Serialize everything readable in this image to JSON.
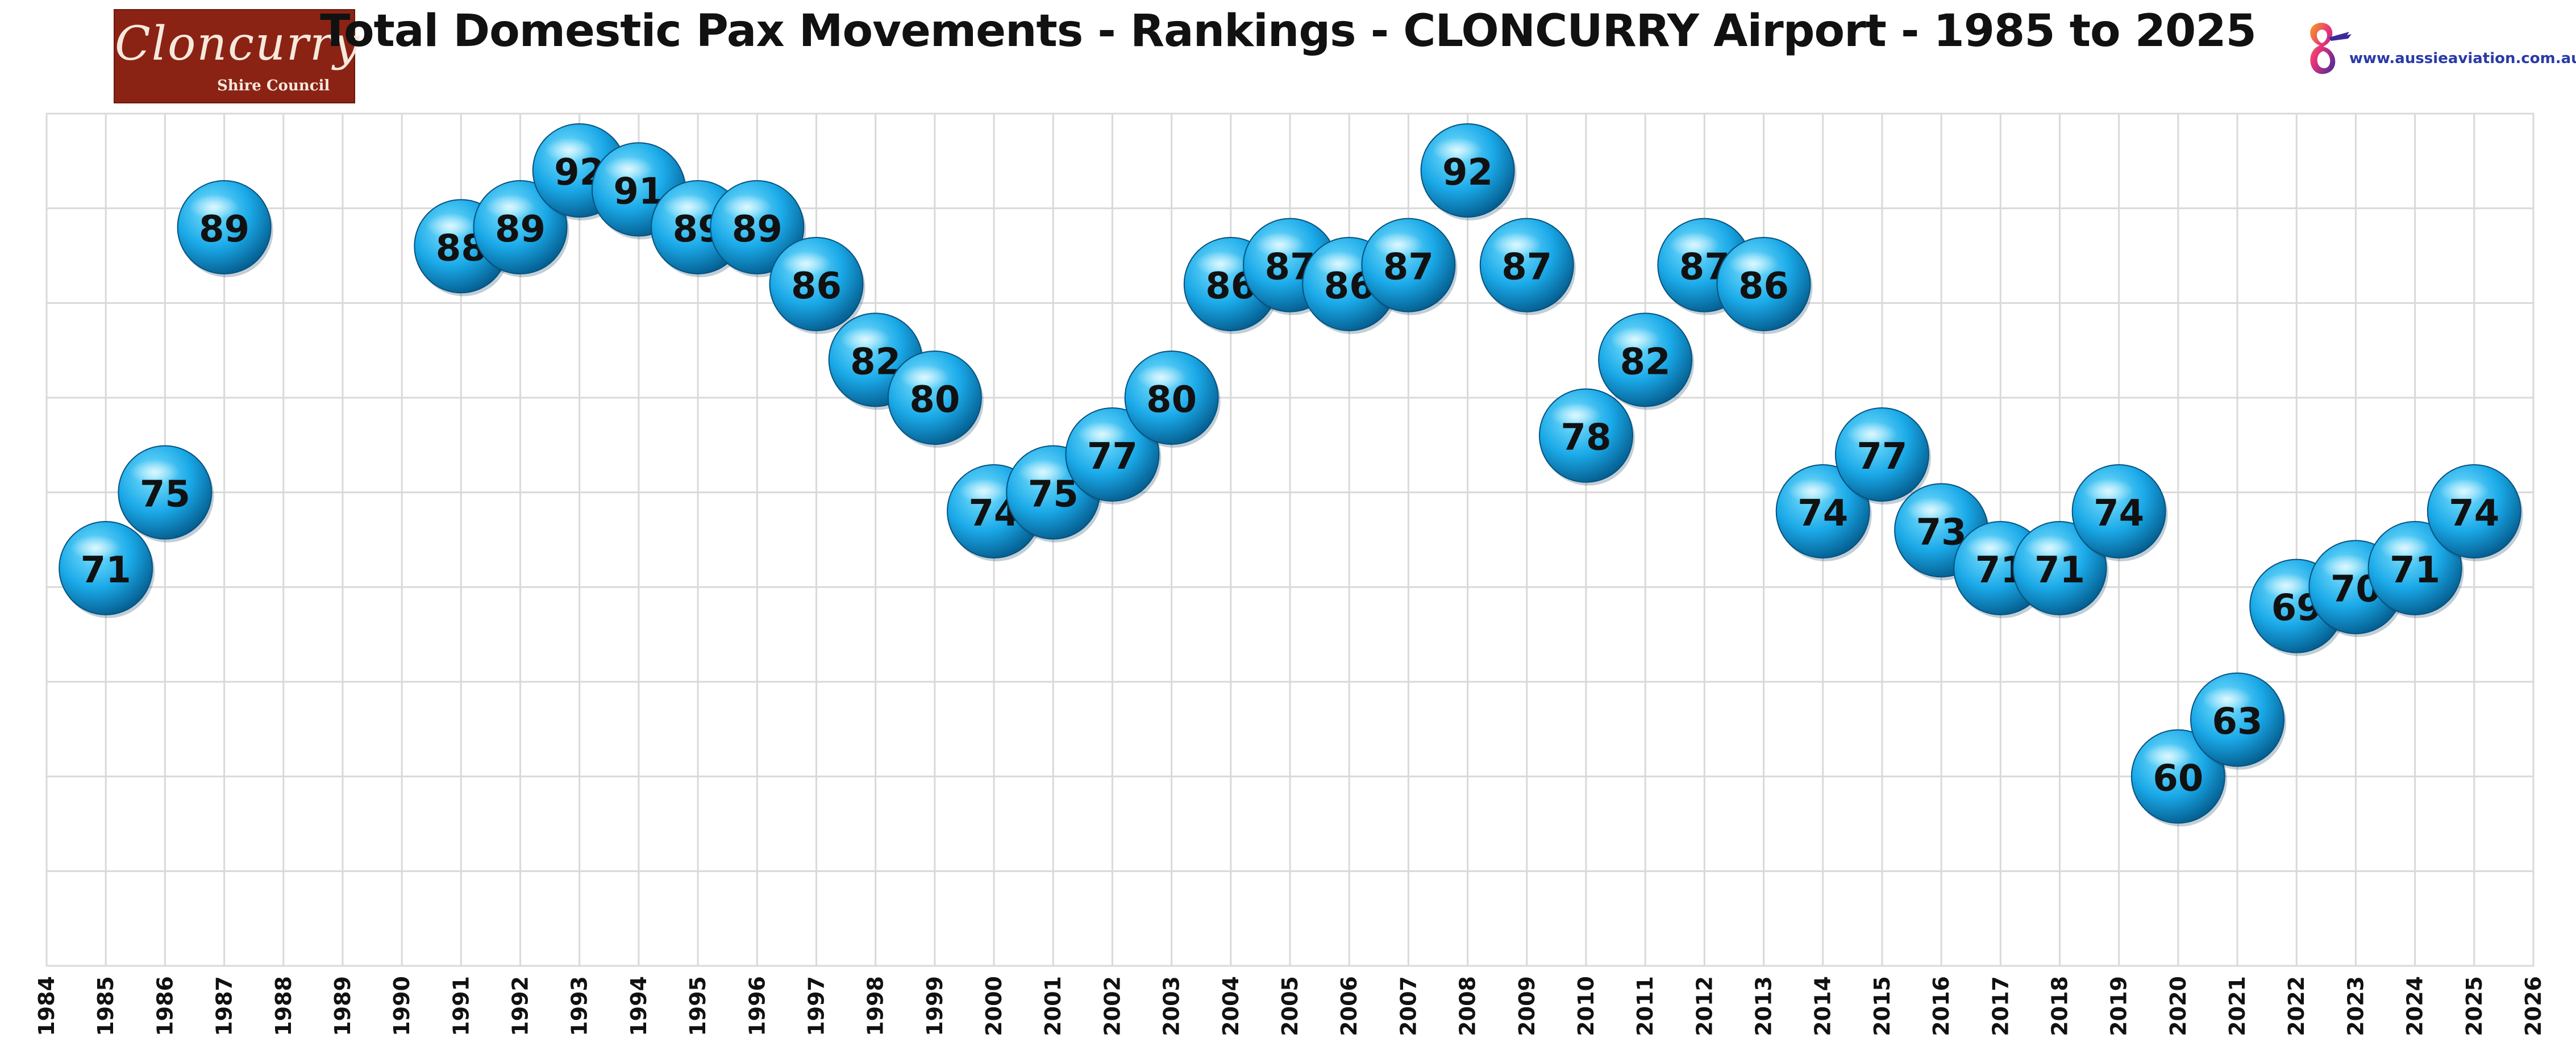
{
  "title": "Total Domestic Pax Movements - Rankings - CLONCURRY Airport - 1985 to 2025",
  "logos": {
    "left_script": "Cloncurry",
    "left_sub": "Shire Council",
    "right_url": "www.aussieaviation.com.au"
  },
  "colors": {
    "bubble_light": "#7fe3ff",
    "bubble_mid": "#1aa9e8",
    "bubble_dark": "#045b8c",
    "grid": "#d9d9d9"
  },
  "chart_data": {
    "type": "scatter",
    "title": "Total Domestic Pax Movements - Rankings - CLONCURRY Airport - 1985 to 2025",
    "xlabel": "",
    "ylabel": "",
    "xlim": [
      1984,
      2026
    ],
    "ylim": [
      50,
      95
    ],
    "grid": true,
    "show_y_tick_labels": false,
    "x_ticks": [
      1984,
      1985,
      1986,
      1987,
      1988,
      1989,
      1990,
      1991,
      1992,
      1993,
      1994,
      1995,
      1996,
      1997,
      1998,
      1999,
      2000,
      2001,
      2002,
      2003,
      2004,
      2005,
      2006,
      2007,
      2008,
      2009,
      2010,
      2011,
      2012,
      2013,
      2014,
      2015,
      2016,
      2017,
      2018,
      2019,
      2020,
      2021,
      2022,
      2023,
      2024,
      2025,
      2026
    ],
    "points": [
      {
        "x": 1985,
        "y": 71
      },
      {
        "x": 1986,
        "y": 75
      },
      {
        "x": 1987,
        "y": 89
      },
      {
        "x": 1991,
        "y": 88
      },
      {
        "x": 1992,
        "y": 89
      },
      {
        "x": 1993,
        "y": 92
      },
      {
        "x": 1994,
        "y": 91
      },
      {
        "x": 1995,
        "y": 89
      },
      {
        "x": 1996,
        "y": 89
      },
      {
        "x": 1997,
        "y": 86
      },
      {
        "x": 1998,
        "y": 82
      },
      {
        "x": 1999,
        "y": 80
      },
      {
        "x": 2000,
        "y": 74
      },
      {
        "x": 2001,
        "y": 75
      },
      {
        "x": 2002,
        "y": 77
      },
      {
        "x": 2003,
        "y": 80
      },
      {
        "x": 2004,
        "y": 86
      },
      {
        "x": 2005,
        "y": 87
      },
      {
        "x": 2006,
        "y": 86
      },
      {
        "x": 2007,
        "y": 87
      },
      {
        "x": 2008,
        "y": 92
      },
      {
        "x": 2009,
        "y": 87
      },
      {
        "x": 2010,
        "y": 78
      },
      {
        "x": 2011,
        "y": 82
      },
      {
        "x": 2012,
        "y": 87
      },
      {
        "x": 2013,
        "y": 86
      },
      {
        "x": 2014,
        "y": 74
      },
      {
        "x": 2015,
        "y": 77
      },
      {
        "x": 2016,
        "y": 73
      },
      {
        "x": 2017,
        "y": 71
      },
      {
        "x": 2018,
        "y": 71
      },
      {
        "x": 2019,
        "y": 74
      },
      {
        "x": 2020,
        "y": 60
      },
      {
        "x": 2021,
        "y": 63
      },
      {
        "x": 2022,
        "y": 69
      },
      {
        "x": 2023,
        "y": 70
      },
      {
        "x": 2024,
        "y": 71
      },
      {
        "x": 2025,
        "y": 74
      }
    ]
  }
}
